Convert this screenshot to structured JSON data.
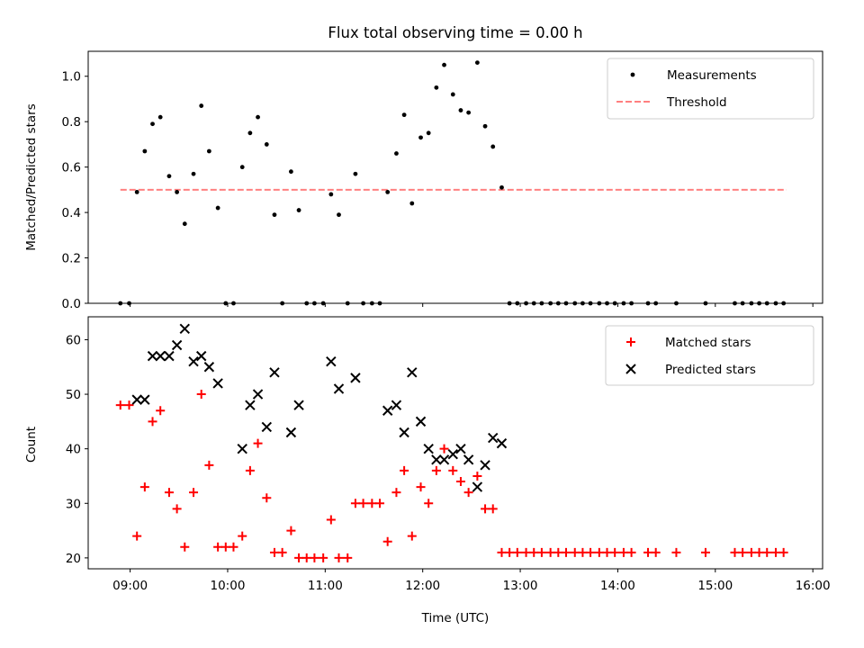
{
  "chart_data": [
    {
      "id": "top",
      "type": "scatter",
      "title": "Flux total observing time = 0.00 h",
      "xlabel": "",
      "ylabel": "Matched/Predicted stars",
      "xlim": [
        8.57,
        16.1
      ],
      "ylim": [
        0.0,
        1.11
      ],
      "yticks": [
        0.0,
        0.2,
        0.4,
        0.6,
        0.8,
        1.0
      ],
      "ytick_labels": [
        "0.0",
        "0.2",
        "0.4",
        "0.6",
        "0.8",
        "1.0"
      ],
      "xticks": [
        9,
        10,
        11,
        12,
        13,
        14,
        15,
        16
      ],
      "legend": {
        "position": "top-right",
        "entries": [
          "Measurements",
          "Threshold"
        ]
      },
      "threshold": {
        "name": "Threshold",
        "value": 0.5,
        "x_range": [
          8.9,
          15.73
        ],
        "color": "#ff8080",
        "style": "dashed"
      },
      "series": [
        {
          "name": "Measurements",
          "marker": "dot",
          "color": "#000000",
          "points": [
            [
              8.9,
              0.0
            ],
            [
              8.99,
              0.0
            ],
            [
              9.07,
              0.49
            ],
            [
              9.15,
              0.67
            ],
            [
              9.23,
              0.79
            ],
            [
              9.31,
              0.82
            ],
            [
              9.4,
              0.56
            ],
            [
              9.48,
              0.49
            ],
            [
              9.56,
              0.35
            ],
            [
              9.65,
              0.57
            ],
            [
              9.73,
              0.87
            ],
            [
              9.81,
              0.67
            ],
            [
              9.9,
              0.42
            ],
            [
              9.98,
              0.0
            ],
            [
              10.06,
              0.0
            ],
            [
              10.15,
              0.6
            ],
            [
              10.23,
              0.75
            ],
            [
              10.31,
              0.82
            ],
            [
              10.4,
              0.7
            ],
            [
              10.48,
              0.39
            ],
            [
              10.56,
              0.0
            ],
            [
              10.65,
              0.58
            ],
            [
              10.73,
              0.41
            ],
            [
              10.81,
              0.0
            ],
            [
              10.89,
              0.0
            ],
            [
              10.98,
              0.0
            ],
            [
              11.06,
              0.48
            ],
            [
              11.14,
              0.39
            ],
            [
              11.23,
              0.0
            ],
            [
              11.31,
              0.57
            ],
            [
              11.39,
              0.0
            ],
            [
              11.48,
              0.0
            ],
            [
              11.56,
              0.0
            ],
            [
              11.64,
              0.49
            ],
            [
              11.73,
              0.66
            ],
            [
              11.81,
              0.83
            ],
            [
              11.89,
              0.44
            ],
            [
              11.98,
              0.73
            ],
            [
              12.06,
              0.75
            ],
            [
              12.14,
              0.95
            ],
            [
              12.22,
              1.05
            ],
            [
              12.31,
              0.92
            ],
            [
              12.39,
              0.85
            ],
            [
              12.47,
              0.84
            ],
            [
              12.56,
              1.06
            ],
            [
              12.64,
              0.78
            ],
            [
              12.72,
              0.69
            ],
            [
              12.81,
              0.51
            ],
            [
              12.89,
              0.0
            ],
            [
              12.97,
              0.0
            ],
            [
              13.06,
              0.0
            ],
            [
              13.14,
              0.0
            ],
            [
              13.22,
              0.0
            ],
            [
              13.31,
              0.0
            ],
            [
              13.39,
              0.0
            ],
            [
              13.47,
              0.0
            ],
            [
              13.56,
              0.0
            ],
            [
              13.64,
              0.0
            ],
            [
              13.72,
              0.0
            ],
            [
              13.81,
              0.0
            ],
            [
              13.89,
              0.0
            ],
            [
              13.97,
              0.0
            ],
            [
              14.06,
              0.0
            ],
            [
              14.14,
              0.0
            ],
            [
              14.31,
              0.0
            ],
            [
              14.39,
              0.0
            ],
            [
              14.6,
              0.0
            ],
            [
              14.9,
              0.0
            ],
            [
              15.2,
              0.0
            ],
            [
              15.28,
              0.0
            ],
            [
              15.37,
              0.0
            ],
            [
              15.45,
              0.0
            ],
            [
              15.53,
              0.0
            ],
            [
              15.62,
              0.0
            ],
            [
              15.7,
              0.0
            ]
          ]
        }
      ]
    },
    {
      "id": "bottom",
      "type": "scatter",
      "title": "",
      "xlabel": "Time (UTC)",
      "ylabel": "Count",
      "xlim": [
        8.57,
        16.1
      ],
      "ylim": [
        18.0,
        64.2
      ],
      "yticks": [
        20,
        30,
        40,
        50,
        60
      ],
      "ytick_labels": [
        "20",
        "30",
        "40",
        "50",
        "60"
      ],
      "xticks": [
        9,
        10,
        11,
        12,
        13,
        14,
        15,
        16
      ],
      "xtick_labels": [
        "09:00",
        "10:00",
        "11:00",
        "12:00",
        "13:00",
        "14:00",
        "15:00",
        "16:00"
      ],
      "legend": {
        "position": "top-right",
        "entries": [
          "Matched stars",
          "Predicted stars"
        ]
      },
      "series": [
        {
          "name": "Matched stars",
          "marker": "plus",
          "color": "#ff0000",
          "points": [
            [
              8.9,
              48
            ],
            [
              8.99,
              48
            ],
            [
              9.07,
              24
            ],
            [
              9.15,
              33
            ],
            [
              9.23,
              45
            ],
            [
              9.31,
              47
            ],
            [
              9.4,
              32
            ],
            [
              9.48,
              29
            ],
            [
              9.56,
              22
            ],
            [
              9.65,
              32
            ],
            [
              9.73,
              50
            ],
            [
              9.81,
              37
            ],
            [
              9.9,
              22
            ],
            [
              9.98,
              22
            ],
            [
              10.06,
              22
            ],
            [
              10.15,
              24
            ],
            [
              10.23,
              36
            ],
            [
              10.31,
              41
            ],
            [
              10.4,
              31
            ],
            [
              10.48,
              21
            ],
            [
              10.56,
              21
            ],
            [
              10.65,
              25
            ],
            [
              10.73,
              20
            ],
            [
              10.81,
              20
            ],
            [
              10.89,
              20
            ],
            [
              10.98,
              20
            ],
            [
              11.06,
              27
            ],
            [
              11.14,
              20
            ],
            [
              11.23,
              20
            ],
            [
              11.31,
              30
            ],
            [
              11.39,
              30
            ],
            [
              11.48,
              30
            ],
            [
              11.56,
              30
            ],
            [
              11.64,
              23
            ],
            [
              11.73,
              32
            ],
            [
              11.81,
              36
            ],
            [
              11.89,
              24
            ],
            [
              11.98,
              33
            ],
            [
              12.06,
              30
            ],
            [
              12.14,
              36
            ],
            [
              12.22,
              40
            ],
            [
              12.31,
              36
            ],
            [
              12.39,
              34
            ],
            [
              12.47,
              32
            ],
            [
              12.56,
              35
            ],
            [
              12.64,
              29
            ],
            [
              12.72,
              29
            ],
            [
              12.81,
              21
            ],
            [
              12.89,
              21
            ],
            [
              12.97,
              21
            ],
            [
              13.06,
              21
            ],
            [
              13.14,
              21
            ],
            [
              13.22,
              21
            ],
            [
              13.31,
              21
            ],
            [
              13.39,
              21
            ],
            [
              13.47,
              21
            ],
            [
              13.56,
              21
            ],
            [
              13.64,
              21
            ],
            [
              13.72,
              21
            ],
            [
              13.81,
              21
            ],
            [
              13.89,
              21
            ],
            [
              13.97,
              21
            ],
            [
              14.06,
              21
            ],
            [
              14.14,
              21
            ],
            [
              14.31,
              21
            ],
            [
              14.39,
              21
            ],
            [
              14.6,
              21
            ],
            [
              14.9,
              21
            ],
            [
              15.2,
              21
            ],
            [
              15.28,
              21
            ],
            [
              15.37,
              21
            ],
            [
              15.45,
              21
            ],
            [
              15.53,
              21
            ],
            [
              15.62,
              21
            ],
            [
              15.7,
              21
            ]
          ]
        },
        {
          "name": "Predicted stars",
          "marker": "x",
          "color": "#000000",
          "points": [
            [
              9.07,
              49
            ],
            [
              9.15,
              49
            ],
            [
              9.23,
              57
            ],
            [
              9.31,
              57
            ],
            [
              9.4,
              57
            ],
            [
              9.48,
              59
            ],
            [
              9.56,
              62
            ],
            [
              9.65,
              56
            ],
            [
              9.73,
              57
            ],
            [
              9.81,
              55
            ],
            [
              9.9,
              52
            ],
            [
              10.15,
              40
            ],
            [
              10.23,
              48
            ],
            [
              10.31,
              50
            ],
            [
              10.4,
              44
            ],
            [
              10.48,
              54
            ],
            [
              10.65,
              43
            ],
            [
              10.73,
              48
            ],
            [
              11.06,
              56
            ],
            [
              11.14,
              51
            ],
            [
              11.31,
              53
            ],
            [
              11.64,
              47
            ],
            [
              11.73,
              48
            ],
            [
              11.81,
              43
            ],
            [
              11.89,
              54
            ],
            [
              11.98,
              45
            ],
            [
              12.06,
              40
            ],
            [
              12.14,
              38
            ],
            [
              12.22,
              38
            ],
            [
              12.31,
              39
            ],
            [
              12.39,
              40
            ],
            [
              12.47,
              38
            ],
            [
              12.56,
              33
            ],
            [
              12.64,
              37
            ],
            [
              12.72,
              42
            ],
            [
              12.81,
              41
            ]
          ]
        }
      ]
    }
  ]
}
